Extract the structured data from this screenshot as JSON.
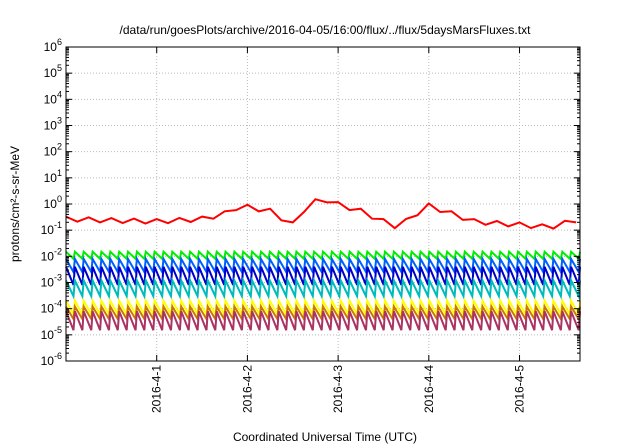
{
  "chart_data": {
    "type": "line",
    "title": "/data/run/goesPlots/archive/2016-04-05/16:00/flux/../flux/5daysMarsFluxes.txt",
    "xlabel": "Coordinated Universal Time (UTC)",
    "ylabel": "protons/cm²-s-sr-MeV",
    "yscale": "log",
    "ylim_exponent": [
      -6,
      6
    ],
    "y_tick_labels": [
      {
        "base": "10",
        "exp": "-6"
      },
      {
        "base": "10",
        "exp": "-5"
      },
      {
        "base": "10",
        "exp": "-4"
      },
      {
        "base": "10",
        "exp": "-3"
      },
      {
        "base": "10",
        "exp": "-2"
      },
      {
        "base": "10",
        "exp": "-1"
      },
      {
        "base": "10",
        "exp": "0"
      },
      {
        "base": "10",
        "exp": "1"
      },
      {
        "base": "10",
        "exp": "2"
      },
      {
        "base": "10",
        "exp": "3"
      },
      {
        "base": "10",
        "exp": "4"
      },
      {
        "base": "10",
        "exp": "5"
      },
      {
        "base": "10",
        "exp": "6"
      }
    ],
    "x_start": "2016-03-31 00:00",
    "x_end": "2016-04-05 16:00",
    "x_ticks": [
      "2016-4-1",
      "2016-4-2",
      "2016-4-3",
      "2016-4-4",
      "2016-4-5"
    ],
    "x_tick_dates": [
      "2016-04-01",
      "2016-04-02",
      "2016-04-03",
      "2016-04-04",
      "2016-04-05"
    ],
    "grid": true,
    "legend": "none",
    "series": [
      {
        "color": "#ff0000",
        "style": "sawtooth",
        "x": [
          "2016-03-31 00:00",
          "2016-03-31 12:00",
          "2016-04-01 00:00",
          "2016-04-01 12:00",
          "2016-04-01 18:00",
          "2016-04-01 22:00",
          "2016-04-02 06:00",
          "2016-04-02 12:00",
          "2016-04-02 16:00",
          "2016-04-02 20:00",
          "2016-04-03 00:00",
          "2016-04-03 06:00",
          "2016-04-03 12:00",
          "2016-04-03 16:00",
          "2016-04-03 20:00",
          "2016-04-04 00:00",
          "2016-04-04 06:00",
          "2016-04-04 12:00",
          "2016-04-04 18:00",
          "2016-04-05 00:00",
          "2016-04-05 08:00",
          "2016-04-05 16:00"
        ],
        "y": [
          0.25,
          0.22,
          0.2,
          0.25,
          0.4,
          0.8,
          0.5,
          0.15,
          0.9,
          1.5,
          0.9,
          0.5,
          0.2,
          0.12,
          0.35,
          0.8,
          0.4,
          0.2,
          0.17,
          0.15,
          0.12,
          0.25
        ]
      },
      {
        "color": "#00ee00",
        "style": "sawtooth",
        "y_range": [
          0.008,
          0.015
        ]
      },
      {
        "color": "#0060ff",
        "style": "sawtooth",
        "y_range": [
          0.0025,
          0.008
        ]
      },
      {
        "color": "#0000cc",
        "style": "sawtooth",
        "y_range": [
          0.0008,
          0.004
        ]
      },
      {
        "color": "#00bbbb",
        "style": "sawtooth",
        "y_range": [
          0.0003,
          0.0012
        ]
      },
      {
        "color": "#ffff00",
        "style": "sawtooth",
        "y_range": [
          6e-05,
          0.0002
        ]
      },
      {
        "color": "#cc7700",
        "style": "sawtooth",
        "y_range": [
          4e-05,
          0.00012
        ]
      },
      {
        "color": "#aa3366",
        "style": "sawtooth",
        "y_range": [
          1.5e-05,
          8e-05
        ]
      }
    ]
  }
}
